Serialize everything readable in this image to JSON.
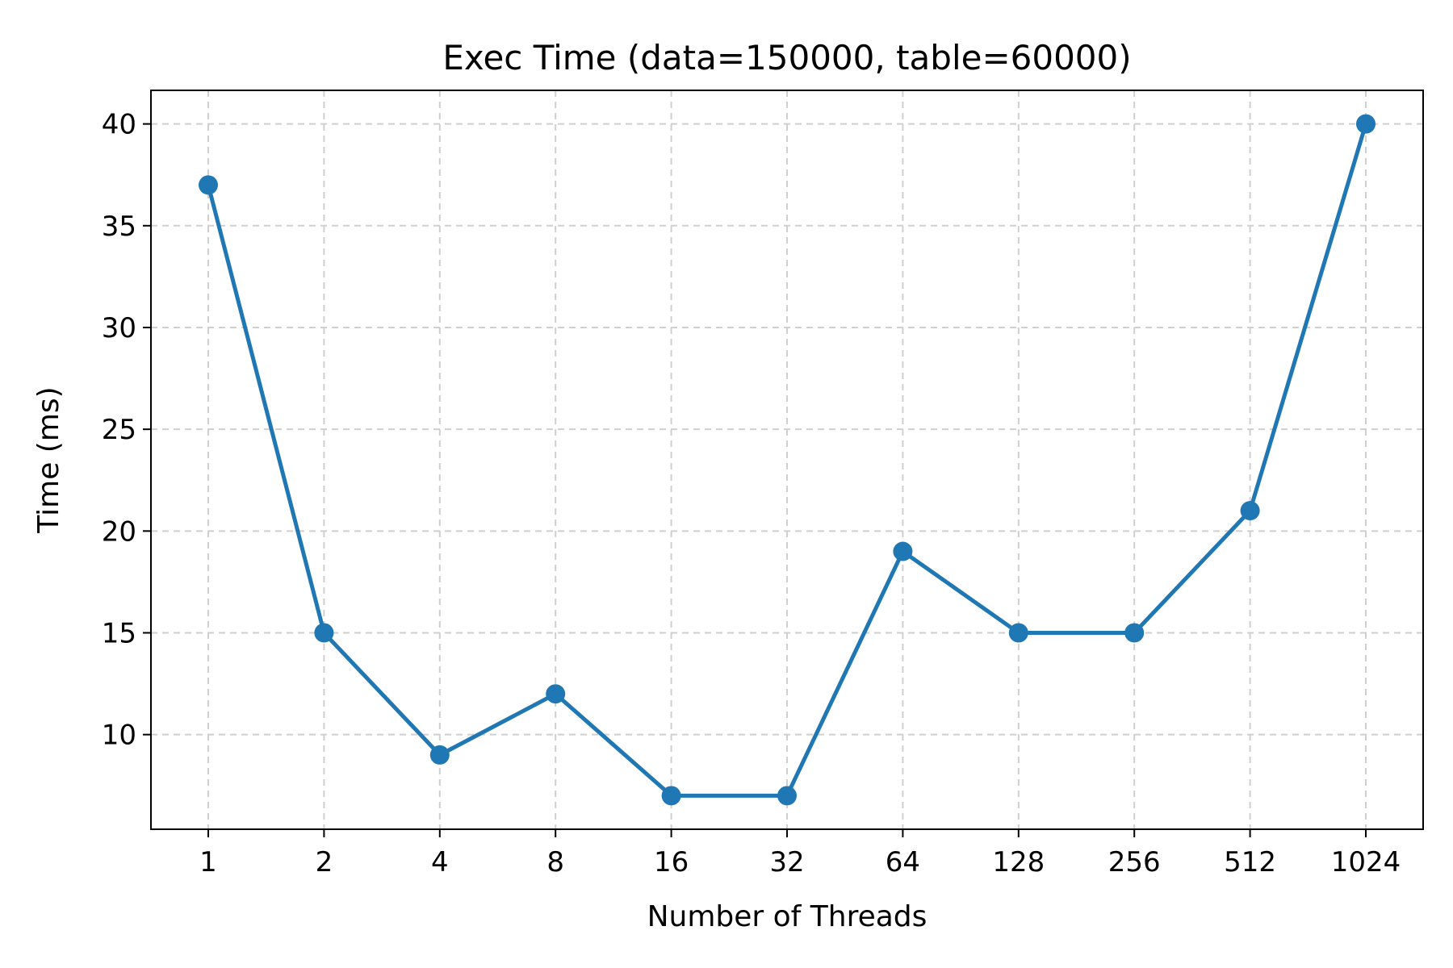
{
  "chart_data": {
    "type": "line",
    "title": "Exec Time (data=150000, table=60000)",
    "xlabel": "Number of Threads",
    "ylabel": "Time (ms)",
    "categories": [
      "1",
      "2",
      "4",
      "8",
      "16",
      "32",
      "64",
      "128",
      "256",
      "512",
      "1024"
    ],
    "series": [
      {
        "values": [
          37,
          15,
          9,
          12,
          7,
          7,
          19,
          15,
          15,
          21,
          40
        ],
        "color": "#1f77b4",
        "marker": "circle"
      }
    ],
    "ylim": [
      5.35,
      41.65
    ],
    "yticks": [
      10,
      15,
      20,
      25,
      30,
      35,
      40
    ],
    "grid": true,
    "legend": "none"
  }
}
